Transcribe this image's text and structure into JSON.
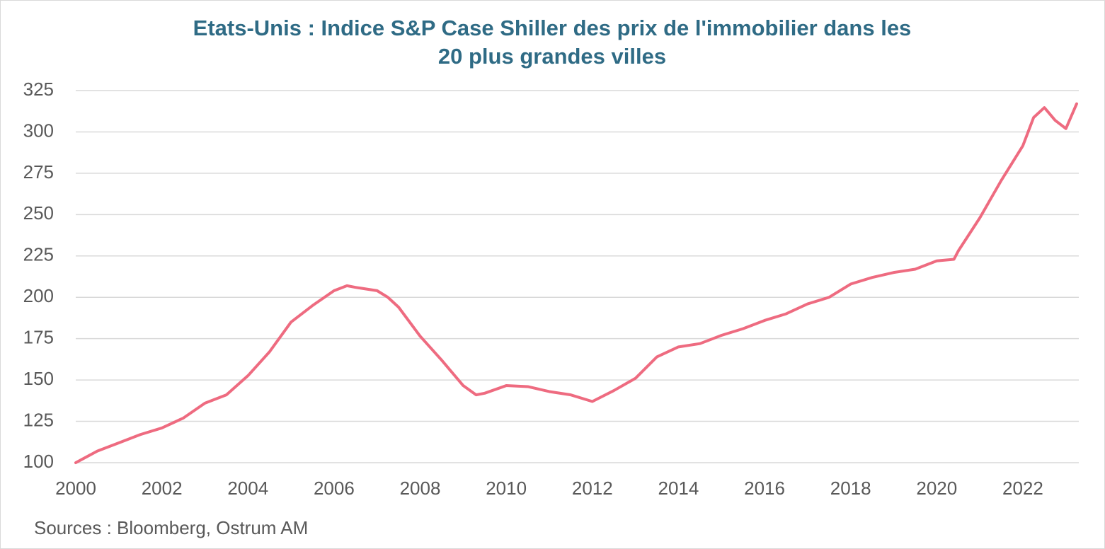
{
  "chart_data": {
    "type": "line",
    "title": [
      "Etats-Unis : Indice S&P Case Shiller des prix de l'immobilier dans les",
      "20 plus grandes villes"
    ],
    "source": "Sources : Bloomberg, Ostrum AM",
    "x": [
      2000,
      2000.5,
      2001,
      2001.5,
      2002,
      2002.5,
      2003,
      2003.5,
      2004,
      2004.5,
      2005,
      2005.5,
      2006,
      2006.3,
      2006.5,
      2007,
      2007.25,
      2007.5,
      2008,
      2008.5,
      2009,
      2009.3,
      2009.5,
      2010,
      2010.5,
      2011,
      2011.5,
      2012,
      2012.5,
      2013,
      2013.5,
      2014,
      2014.5,
      2015,
      2015.5,
      2016,
      2016.5,
      2017,
      2017.5,
      2018,
      2018.5,
      2019,
      2019.5,
      2020,
      2020.4,
      2020.5,
      2021,
      2021.5,
      2022,
      2022.25,
      2022.5,
      2022.75,
      2023,
      2023.25
    ],
    "series": [
      {
        "name": "S&P Case Shiller 20",
        "color": "#ee6b80",
        "values": [
          100,
          107,
          112,
          117,
          121,
          127,
          136,
          141,
          152.6,
          167,
          185,
          195,
          204,
          207,
          206,
          204,
          200,
          194,
          176.5,
          162,
          146.6,
          141,
          142,
          146.6,
          146,
          143,
          141,
          137,
          143.6,
          151,
          164,
          170,
          172,
          177,
          181,
          186,
          190,
          196,
          200,
          208,
          212,
          215,
          217,
          222,
          223,
          228,
          248,
          270.7,
          291.6,
          308.7,
          314.7,
          307,
          302,
          317
        ]
      }
    ],
    "xlim": [
      2000,
      2023.3
    ],
    "xticks": [
      2000,
      2002,
      2004,
      2006,
      2008,
      2010,
      2012,
      2014,
      2016,
      2018,
      2020,
      2022
    ],
    "ylim": [
      100,
      325
    ],
    "yticks": [
      100,
      125,
      150,
      175,
      200,
      225,
      250,
      275,
      300,
      325
    ],
    "grid": true
  }
}
